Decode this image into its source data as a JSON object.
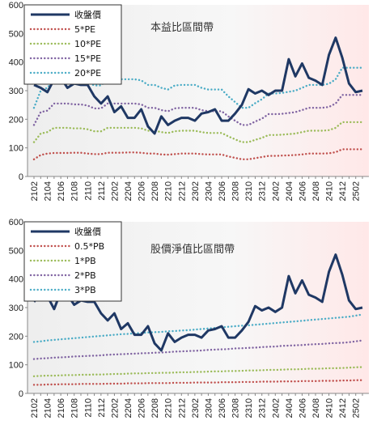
{
  "chart_data": [
    {
      "type": "line",
      "title": "本益比區間帶",
      "categories": [
        "2102",
        "2103",
        "2104",
        "2105",
        "2106",
        "2107",
        "2108",
        "2109",
        "2110",
        "2111",
        "2112",
        "2201",
        "2202",
        "2203",
        "2204",
        "2205",
        "2206",
        "2207",
        "2208",
        "2209",
        "2210",
        "2211",
        "2212",
        "2301",
        "2302",
        "2303",
        "2304",
        "2305",
        "2306",
        "2307",
        "2308",
        "2309",
        "2310",
        "2311",
        "2312",
        "2401",
        "2402",
        "2403",
        "2404",
        "2405",
        "2406",
        "2407",
        "2408",
        "2409",
        "2410",
        "2411",
        "2412",
        "2501",
        "2502",
        "2503"
      ],
      "xtick_labels": [
        "2102",
        "2104",
        "2106",
        "2108",
        "2110",
        "2112",
        "2202",
        "2204",
        "2206",
        "2208",
        "2210",
        "2212",
        "2302",
        "2304",
        "2306",
        "2308",
        "2310",
        "2312",
        "2402",
        "2404",
        "2406",
        "2408",
        "2410",
        "2412",
        "2502"
      ],
      "ylim": [
        0,
        600
      ],
      "yticks": [
        0,
        100,
        200,
        300,
        400,
        500,
        600
      ],
      "grid": false,
      "legend_position": "top-left",
      "series": [
        {
          "name": "收盤價",
          "color": "#1f3864",
          "style": "solid",
          "values": [
            320,
            310,
            295,
            340,
            345,
            310,
            325,
            320,
            320,
            280,
            255,
            280,
            225,
            245,
            205,
            205,
            235,
            175,
            150,
            210,
            180,
            195,
            205,
            205,
            195,
            220,
            225,
            235,
            195,
            195,
            220,
            250,
            305,
            290,
            300,
            285,
            300,
            300,
            410,
            350,
            395,
            345,
            335,
            320,
            425,
            485,
            415,
            325,
            295,
            300
          ]
        },
        {
          "name": "5*PE",
          "color": "#c0504d",
          "style": "dotted",
          "values": [
            60,
            75,
            80,
            82,
            82,
            82,
            83,
            83,
            80,
            78,
            78,
            83,
            83,
            83,
            84,
            84,
            83,
            80,
            80,
            77,
            76,
            78,
            80,
            80,
            80,
            78,
            77,
            77,
            77,
            70,
            65,
            60,
            60,
            64,
            68,
            72,
            72,
            73,
            74,
            75,
            77,
            80,
            80,
            80,
            81,
            85,
            95,
            95,
            95,
            95
          ]
        },
        {
          "name": "10*PE",
          "color": "#9bbb59",
          "style": "dotted",
          "values": [
            120,
            150,
            155,
            170,
            170,
            170,
            168,
            168,
            165,
            158,
            158,
            170,
            170,
            170,
            170,
            170,
            168,
            160,
            160,
            155,
            152,
            158,
            160,
            160,
            160,
            155,
            152,
            152,
            152,
            140,
            130,
            120,
            120,
            128,
            135,
            145,
            145,
            146,
            148,
            150,
            155,
            160,
            160,
            160,
            162,
            170,
            190,
            190,
            190,
            190
          ]
        },
        {
          "name": "15*PE",
          "color": "#8064a2",
          "style": "dotted",
          "values": [
            180,
            225,
            230,
            255,
            255,
            255,
            252,
            252,
            248,
            238,
            238,
            255,
            255,
            255,
            255,
            255,
            252,
            240,
            240,
            232,
            228,
            238,
            240,
            240,
            240,
            232,
            228,
            228,
            228,
            210,
            195,
            180,
            180,
            192,
            202,
            218,
            218,
            219,
            222,
            225,
            232,
            240,
            240,
            240,
            243,
            255,
            285,
            285,
            285,
            285
          ]
        },
        {
          "name": "20*PE",
          "color": "#4bacc6",
          "style": "dotted",
          "values": [
            240,
            300,
            310,
            340,
            340,
            340,
            336,
            336,
            330,
            318,
            318,
            340,
            340,
            340,
            340,
            340,
            336,
            320,
            320,
            310,
            304,
            318,
            320,
            320,
            320,
            310,
            304,
            304,
            304,
            280,
            260,
            240,
            240,
            256,
            270,
            290,
            290,
            292,
            296,
            300,
            310,
            320,
            320,
            320,
            324,
            340,
            380,
            380,
            380,
            380
          ]
        }
      ]
    },
    {
      "type": "line",
      "title": "股價淨值比區間帶",
      "categories": [
        "2102",
        "2103",
        "2104",
        "2105",
        "2106",
        "2107",
        "2108",
        "2109",
        "2110",
        "2111",
        "2112",
        "2201",
        "2202",
        "2203",
        "2204",
        "2205",
        "2206",
        "2207",
        "2208",
        "2209",
        "2210",
        "2211",
        "2212",
        "2301",
        "2302",
        "2303",
        "2304",
        "2305",
        "2306",
        "2307",
        "2308",
        "2309",
        "2310",
        "2311",
        "2312",
        "2401",
        "2402",
        "2403",
        "2404",
        "2405",
        "2406",
        "2407",
        "2408",
        "2409",
        "2410",
        "2411",
        "2412",
        "2501",
        "2502",
        "2503"
      ],
      "xtick_labels": [
        "2102",
        "2104",
        "2106",
        "2108",
        "2110",
        "2112",
        "2202",
        "2204",
        "2206",
        "2208",
        "2210",
        "2212",
        "2302",
        "2304",
        "2306",
        "2308",
        "2310",
        "2312",
        "2402",
        "2404",
        "2406",
        "2408",
        "2410",
        "2412",
        "2502"
      ],
      "ylim": [
        0,
        600
      ],
      "yticks": [
        0,
        100,
        200,
        300,
        400,
        500,
        600
      ],
      "grid": false,
      "legend_position": "top-left",
      "series": [
        {
          "name": "收盤價",
          "color": "#1f3864",
          "style": "solid",
          "values": [
            320,
            345,
            340,
            295,
            355,
            345,
            310,
            325,
            320,
            320,
            280,
            255,
            280,
            225,
            245,
            205,
            205,
            235,
            175,
            150,
            210,
            180,
            195,
            205,
            205,
            195,
            220,
            225,
            235,
            195,
            195,
            220,
            250,
            305,
            290,
            300,
            285,
            300,
            410,
            350,
            395,
            345,
            335,
            320,
            425,
            485,
            415,
            325,
            295,
            300
          ]
        },
        {
          "name": "0.5*PB",
          "color": "#c0504d",
          "style": "dotted",
          "values": [
            30,
            30,
            31,
            31,
            32,
            32,
            32,
            33,
            33,
            33,
            33,
            34,
            34,
            34,
            35,
            35,
            35,
            36,
            36,
            36,
            36,
            37,
            37,
            37,
            38,
            38,
            38,
            38,
            39,
            39,
            39,
            40,
            40,
            40,
            41,
            41,
            41,
            42,
            42,
            42,
            43,
            43,
            43,
            44,
            44,
            44,
            45,
            45,
            46,
            46
          ]
        },
        {
          "name": "1*PB",
          "color": "#9bbb59",
          "style": "dotted",
          "values": [
            60,
            61,
            62,
            62,
            63,
            64,
            64,
            65,
            65,
            66,
            66,
            67,
            68,
            68,
            69,
            70,
            70,
            71,
            71,
            72,
            72,
            73,
            74,
            74,
            75,
            75,
            76,
            77,
            77,
            78,
            78,
            79,
            80,
            80,
            81,
            82,
            82,
            83,
            84,
            84,
            85,
            86,
            86,
            87,
            88,
            88,
            89,
            90,
            91,
            92
          ]
        },
        {
          "name": "2*PB",
          "color": "#8064a2",
          "style": "dotted",
          "values": [
            120,
            122,
            123,
            125,
            126,
            127,
            129,
            130,
            131,
            132,
            133,
            135,
            136,
            137,
            138,
            139,
            140,
            141,
            142,
            143,
            144,
            146,
            147,
            148,
            149,
            150,
            152,
            153,
            154,
            155,
            157,
            158,
            159,
            160,
            162,
            163,
            164,
            166,
            167,
            168,
            169,
            171,
            172,
            173,
            175,
            176,
            177,
            179,
            182,
            185
          ]
        },
        {
          "name": "3*PB",
          "color": "#4bacc6",
          "style": "dotted",
          "values": [
            180,
            182,
            185,
            187,
            189,
            191,
            193,
            195,
            197,
            199,
            201,
            203,
            205,
            207,
            208,
            210,
            211,
            213,
            214,
            215,
            217,
            218,
            220,
            221,
            223,
            225,
            227,
            229,
            231,
            233,
            235,
            237,
            238,
            240,
            242,
            244,
            246,
            248,
            250,
            252,
            254,
            256,
            258,
            260,
            262,
            264,
            266,
            268,
            272,
            276
          ]
        }
      ]
    }
  ]
}
